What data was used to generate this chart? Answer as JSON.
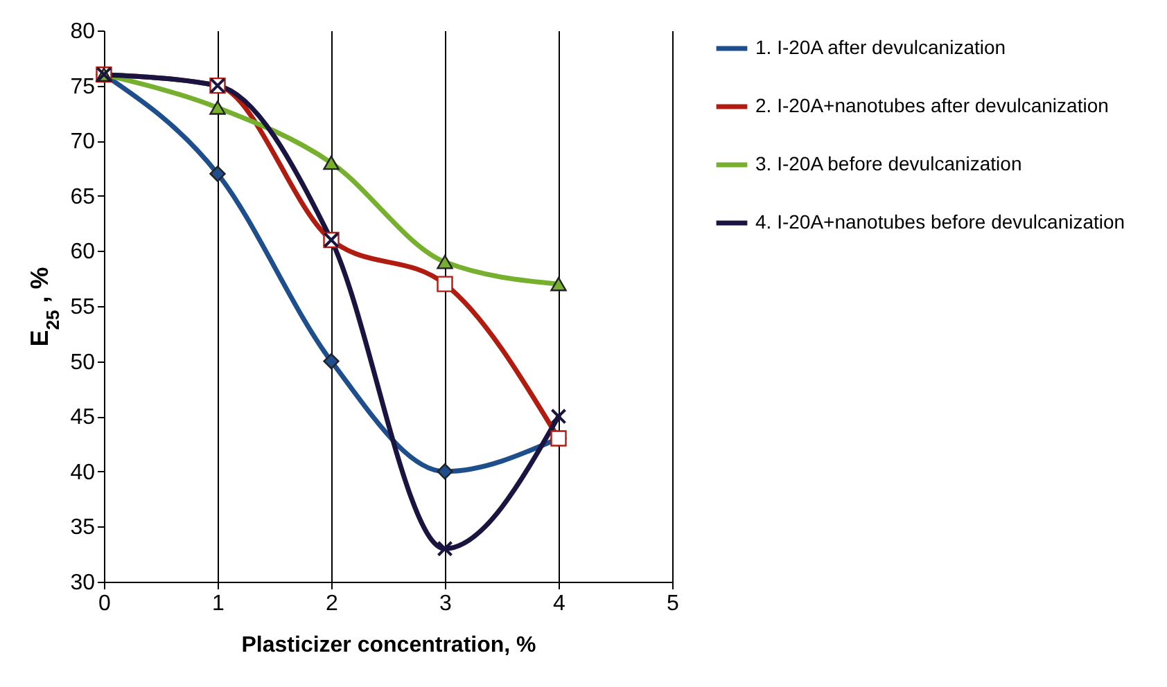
{
  "chart_data": {
    "type": "line",
    "xlabel": "Plasticizer concentration, %",
    "ylabel": "E$_{25}$ , %",
    "x": [
      0,
      1,
      2,
      3,
      4
    ],
    "xlim": [
      0,
      5
    ],
    "xticks": [
      0,
      1,
      2,
      3,
      4,
      5
    ],
    "ylim": [
      30,
      80
    ],
    "yticks": [
      30,
      35,
      40,
      45,
      50,
      55,
      60,
      65,
      70,
      75,
      80
    ],
    "grid": "x",
    "legend": "right",
    "series": [
      {
        "name": "1. I-20A after devulcanization",
        "color": "#1f4e8c",
        "marker": "diamond",
        "values": [
          76,
          67,
          50,
          40,
          43
        ]
      },
      {
        "name": "2. I-20A+nanotubes after devulcanization",
        "color": "#b01c10",
        "marker": "square",
        "values": [
          76,
          75,
          61,
          57,
          43
        ]
      },
      {
        "name": "3. I-20A before devulcanization",
        "color": "#77b02e",
        "marker": "triangle",
        "values": [
          76,
          73,
          68,
          59,
          57
        ]
      },
      {
        "name": "4. I-20A+nanotubes before devulcanization",
        "color": "#1a1440",
        "marker": "cross",
        "values": [
          76,
          75,
          61,
          33,
          45
        ]
      }
    ]
  }
}
